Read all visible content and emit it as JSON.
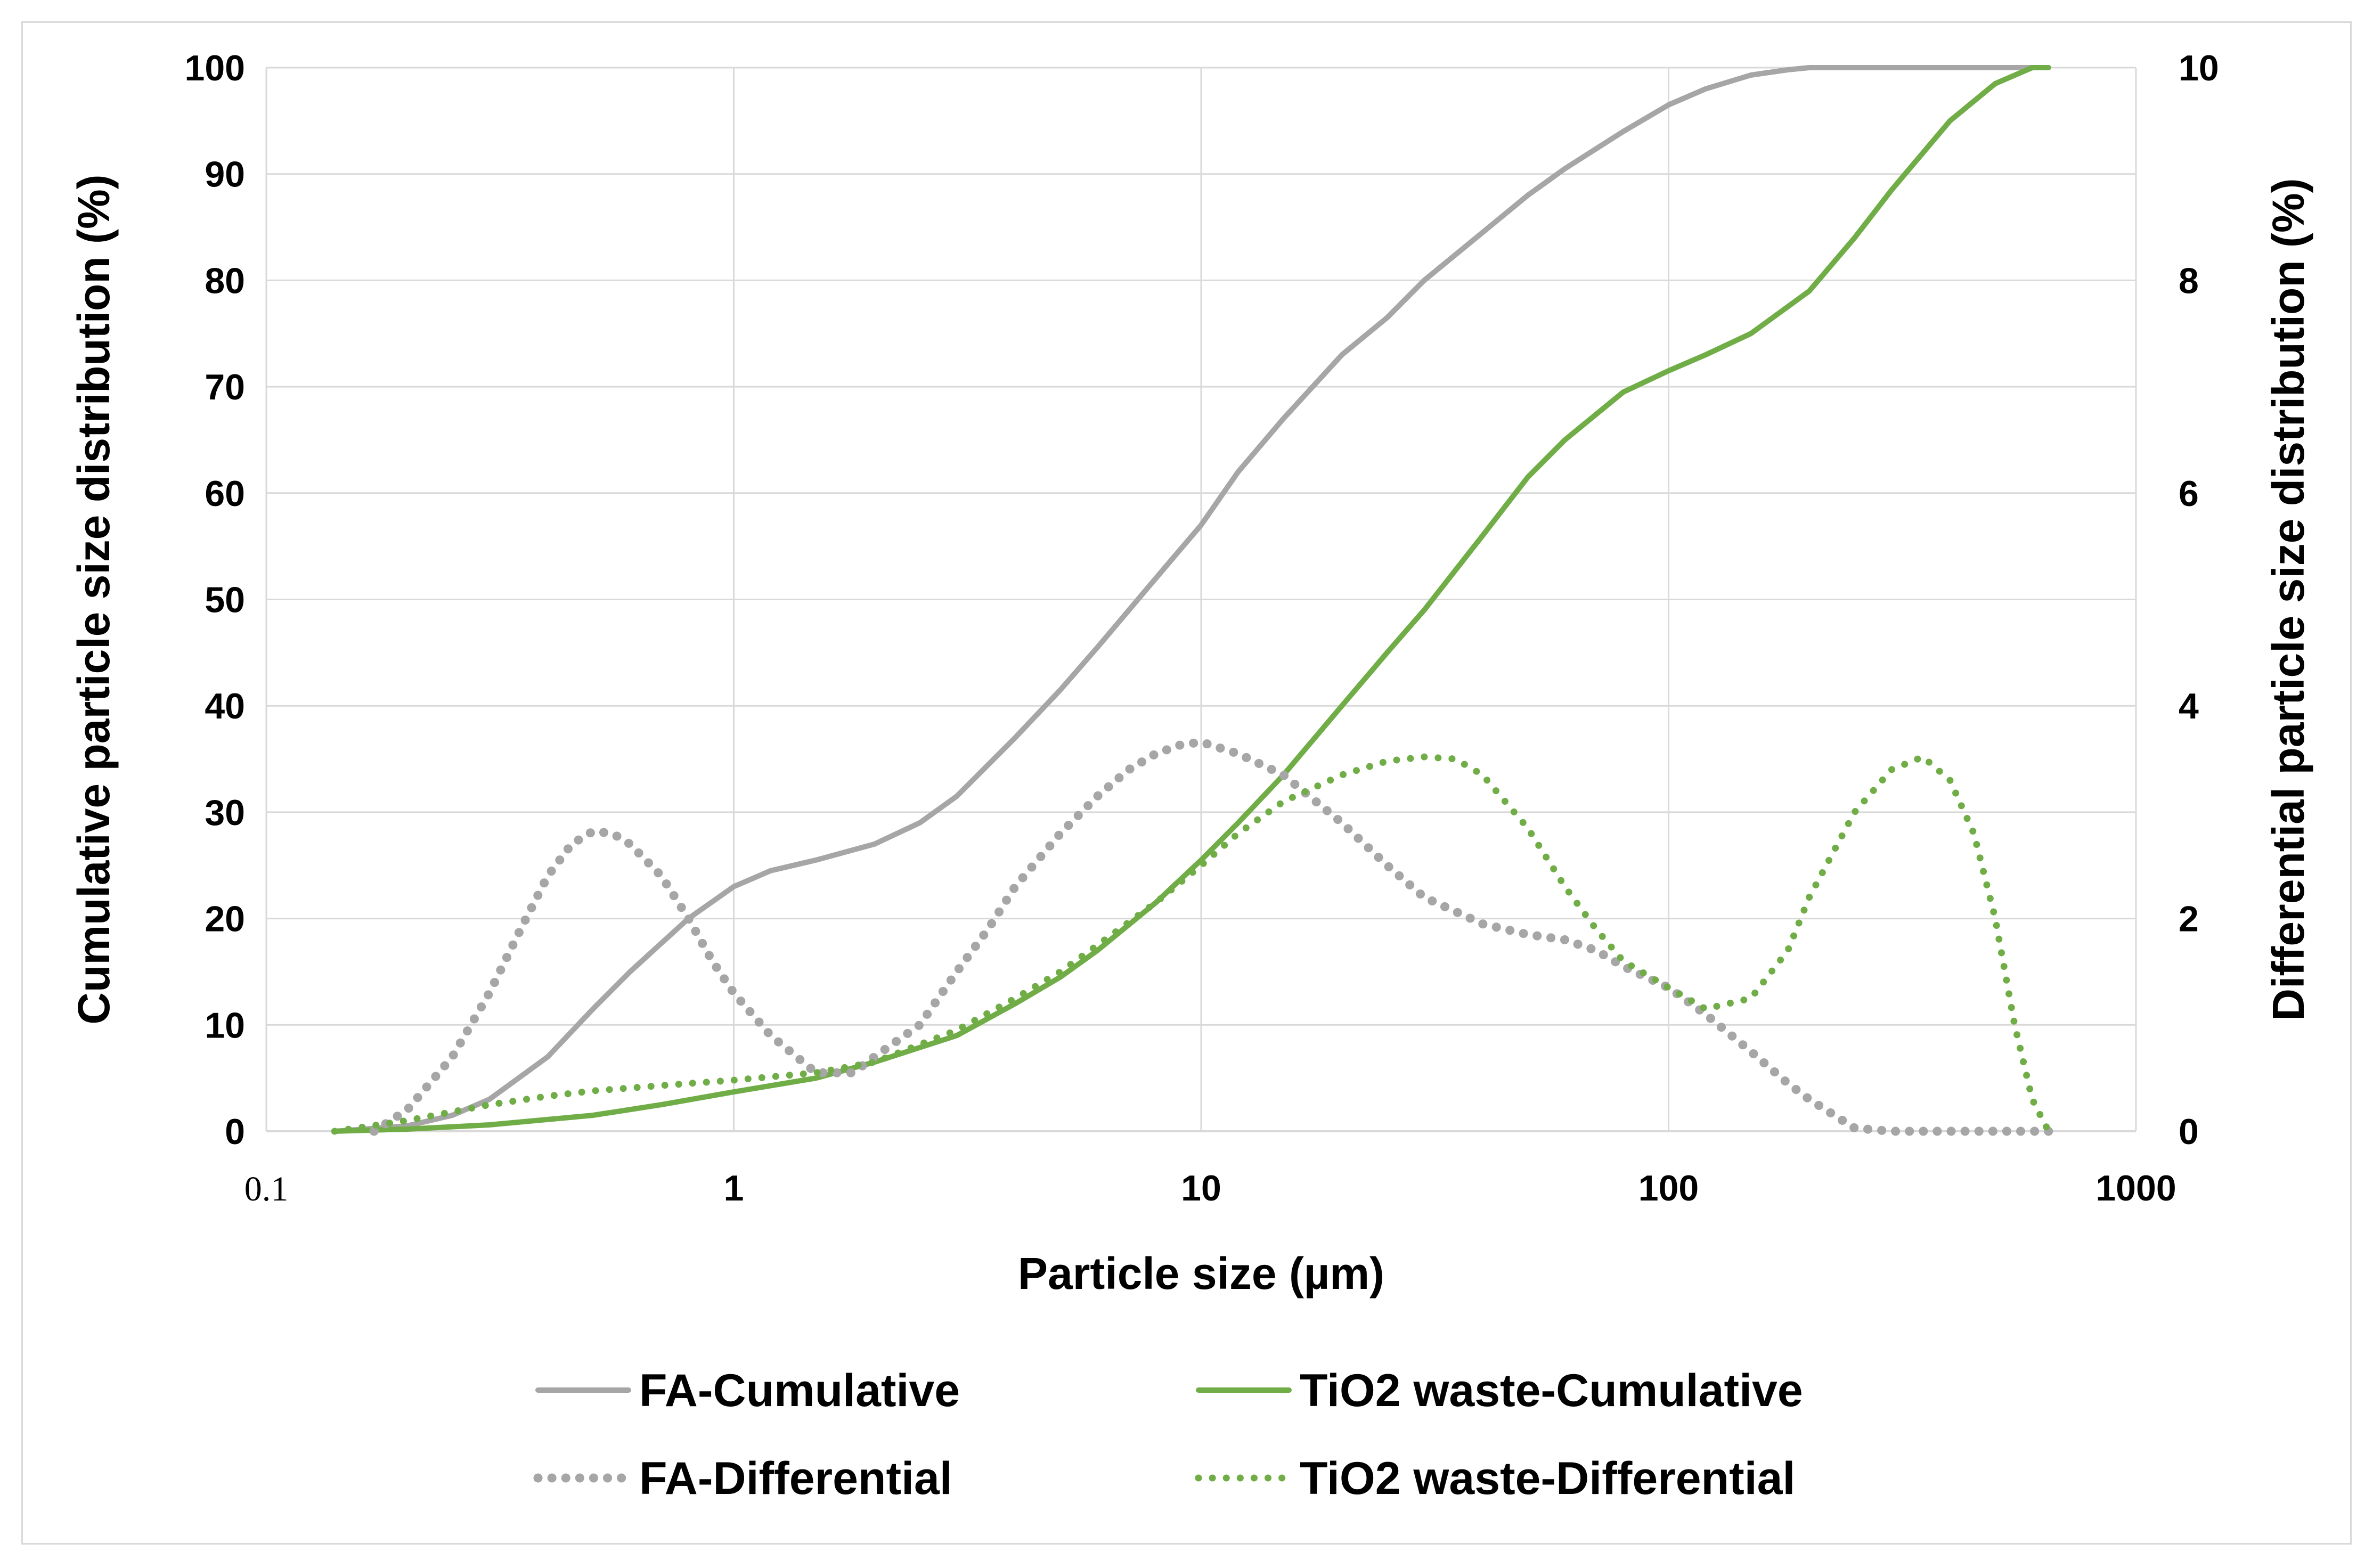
{
  "chart_data": {
    "type": "line",
    "xlabel": "Particle size (µm)",
    "ylabel": "Cumulative particle size distribution (%)",
    "y2label": "Differential particle size distribution (%)",
    "xscale": "log",
    "xlim": [
      0.1,
      1000
    ],
    "ylim": [
      0,
      100
    ],
    "y2lim": [
      0,
      10
    ],
    "x_ticks": [
      "0.1",
      "1",
      "10",
      "100",
      "1000"
    ],
    "y_ticks": [
      "0",
      "10",
      "20",
      "30",
      "40",
      "50",
      "60",
      "70",
      "80",
      "90",
      "100"
    ],
    "y2_ticks": [
      "0",
      "2",
      "4",
      "6",
      "8",
      "10"
    ],
    "grid": true,
    "legend_position": "bottom",
    "series": [
      {
        "name": "FA-Cumulative",
        "axis": "left",
        "style": "solid",
        "color": "#a6a6a6",
        "x": [
          0.14,
          0.2,
          0.25,
          0.3,
          0.4,
          0.5,
          0.6,
          0.8,
          1.0,
          1.2,
          1.5,
          2,
          2.5,
          3,
          4,
          5,
          6,
          8,
          10,
          12,
          15,
          20,
          25,
          30,
          40,
          50,
          60,
          80,
          100,
          120,
          150,
          180,
          200,
          300,
          500,
          650
        ],
        "y": [
          0,
          0.5,
          1.5,
          3,
          7,
          11.5,
          15,
          20,
          23,
          24.5,
          25.5,
          27,
          29,
          31.5,
          37,
          41.5,
          45.5,
          52,
          57,
          62,
          67,
          73,
          76.5,
          80,
          84.5,
          88,
          90.5,
          94,
          96.5,
          98,
          99.3,
          99.8,
          100,
          100,
          100,
          100
        ]
      },
      {
        "name": "TiO2 waste-Cumulative",
        "axis": "left",
        "style": "solid",
        "color": "#70ad47",
        "x": [
          0.14,
          0.2,
          0.3,
          0.5,
          0.7,
          1.0,
          1.5,
          2,
          3,
          4,
          5,
          6,
          8,
          10,
          12,
          15,
          20,
          25,
          30,
          40,
          50,
          60,
          80,
          100,
          120,
          150,
          200,
          250,
          300,
          400,
          500,
          600,
          650
        ],
        "y": [
          0,
          0.2,
          0.6,
          1.5,
          2.5,
          3.7,
          5,
          6.5,
          9,
          12,
          14.5,
          17,
          21.5,
          25.5,
          29,
          33.5,
          40,
          45,
          49,
          56,
          61.5,
          65,
          69.5,
          71.5,
          73,
          75,
          79,
          84,
          88.5,
          95,
          98.5,
          100,
          100
        ]
      },
      {
        "name": "FA-Differential",
        "axis": "right",
        "style": "dotted",
        "color": "#a6a6a6",
        "x": [
          0.17,
          0.2,
          0.25,
          0.3,
          0.35,
          0.4,
          0.45,
          0.5,
          0.55,
          0.6,
          0.7,
          0.8,
          0.9,
          1.0,
          1.2,
          1.5,
          1.8,
          2,
          2.5,
          3,
          3.5,
          4,
          5,
          6,
          7,
          8,
          9,
          10,
          12,
          15,
          20,
          25,
          30,
          40,
          50,
          60,
          70,
          80,
          100,
          120,
          150,
          180,
          200,
          250,
          300,
          400,
          500,
          650
        ],
        "y": [
          0,
          0.2,
          0.7,
          1.3,
          1.9,
          2.4,
          2.7,
          2.82,
          2.8,
          2.7,
          2.4,
          2.0,
          1.6,
          1.3,
          0.9,
          0.55,
          0.55,
          0.7,
          1.0,
          1.5,
          1.9,
          2.3,
          2.8,
          3.15,
          3.4,
          3.55,
          3.63,
          3.66,
          3.55,
          3.35,
          2.9,
          2.5,
          2.2,
          1.95,
          1.85,
          1.8,
          1.7,
          1.55,
          1.35,
          1.1,
          0.75,
          0.45,
          0.3,
          0.03,
          0,
          0,
          0,
          0
        ]
      },
      {
        "name": "TiO2 waste-Differential",
        "axis": "right",
        "style": "dotted",
        "color": "#70ad47",
        "x": [
          0.14,
          0.2,
          0.3,
          0.4,
          0.5,
          0.7,
          1.0,
          1.5,
          2,
          3,
          4,
          5,
          6,
          8,
          10,
          12,
          15,
          20,
          25,
          30,
          35,
          40,
          50,
          60,
          70,
          80,
          100,
          120,
          150,
          180,
          200,
          250,
          300,
          350,
          400,
          450,
          500,
          550,
          600,
          650
        ],
        "y": [
          0,
          0.1,
          0.25,
          0.33,
          0.38,
          0.43,
          0.48,
          0.55,
          0.65,
          0.95,
          1.25,
          1.5,
          1.75,
          2.15,
          2.5,
          2.8,
          3.1,
          3.35,
          3.48,
          3.52,
          3.5,
          3.35,
          2.85,
          2.3,
          1.9,
          1.6,
          1.35,
          1.15,
          1.25,
          1.7,
          2.2,
          3.0,
          3.4,
          3.52,
          3.3,
          2.8,
          2.0,
          1.0,
          0.3,
          0
        ]
      }
    ]
  }
}
